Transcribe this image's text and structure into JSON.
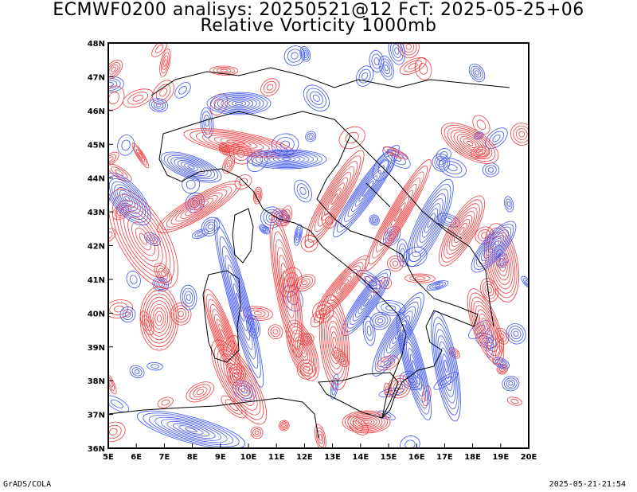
{
  "header": {
    "title_line1": "ECMWF0200 analisys: 20250521@12 FcT: 2025-05-25+06",
    "title_line2": "Relative Vorticity 1000mb"
  },
  "map": {
    "lon_labels": [
      "5E",
      "6E",
      "7E",
      "8E",
      "9E",
      "10E",
      "11E",
      "12E",
      "13E",
      "14E",
      "15E",
      "16E",
      "17E",
      "18E",
      "19E",
      "20E"
    ],
    "lat_labels": [
      "48N",
      "47N",
      "46N",
      "45N",
      "44N",
      "43N",
      "42N",
      "41N",
      "40N",
      "39N",
      "38N",
      "37N",
      "36N"
    ],
    "lon_range": [
      5,
      20
    ],
    "lat_range": [
      36,
      48
    ],
    "contour_colors": {
      "positive": "#f03c3c",
      "negative": "#3c55f0",
      "coast": "#000000"
    }
  },
  "footer": {
    "left": "GrADS/COLA",
    "right": "2025-05-21-21:54"
  }
}
